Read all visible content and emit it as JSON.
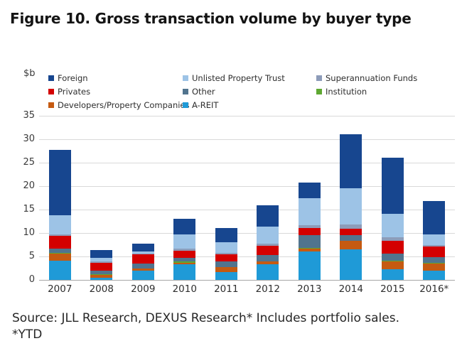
{
  "title": "Figure 10. Gross transaction volume by buyer type",
  "unit_label": "$b",
  "source": {
    "line1": "Source: JLL Research, DEXUS Research* Includes portfolio sales.",
    "line2": "*YTD"
  },
  "legend": {
    "position": "top",
    "columns": [
      [
        "Foreign",
        "Privates",
        "Developers/Property Companies"
      ],
      [
        "Unlisted Property Trust",
        "Other",
        "A-REIT"
      ],
      [
        "Superannuation Funds",
        "Institution"
      ]
    ]
  },
  "chart_data": {
    "type": "bar",
    "stacked": true,
    "grid": true,
    "ylabel": "$b",
    "ylim": [
      0,
      35
    ],
    "yticks": [
      0,
      5,
      10,
      15,
      20,
      25,
      30,
      35
    ],
    "categories": [
      "2007",
      "2008",
      "2009",
      "2010",
      "2011",
      "2012",
      "2013",
      "2014",
      "2015",
      "2016*"
    ],
    "series_order": "bottom-to-top",
    "series": [
      {
        "name": "A-REIT",
        "color": "#1f9ad7",
        "values": [
          4.1,
          0.5,
          2.0,
          3.3,
          1.7,
          3.4,
          6.0,
          6.5,
          2.2,
          2.0
        ]
      },
      {
        "name": "Developers/Property Companies",
        "color": "#c55a11",
        "values": [
          1.5,
          0.6,
          0.4,
          0.4,
          1.0,
          0.5,
          0.7,
          1.8,
          1.8,
          1.5
        ]
      },
      {
        "name": "Institution",
        "color": "#5ea832",
        "values": [
          0.1,
          0.1,
          0.1,
          0.2,
          0.1,
          0.1,
          0.1,
          0.1,
          0.1,
          0.1
        ]
      },
      {
        "name": "Other",
        "color": "#51748e",
        "values": [
          1.0,
          0.7,
          1.0,
          0.8,
          1.2,
          1.3,
          2.7,
          1.2,
          1.5,
          1.2
        ]
      },
      {
        "name": "Privates",
        "color": "#d40000",
        "values": [
          2.7,
          1.8,
          1.9,
          1.5,
          1.4,
          2.0,
          1.6,
          1.3,
          2.8,
          2.3
        ]
      },
      {
        "name": "Superannuation Funds",
        "color": "#8d9cb9",
        "values": [
          0.3,
          0.2,
          0.2,
          0.5,
          0.3,
          0.5,
          0.5,
          1.0,
          0.7,
          0.3
        ]
      },
      {
        "name": "Unlisted Property Trust",
        "color": "#9dc3e6",
        "values": [
          4.1,
          0.8,
          0.5,
          3.0,
          2.4,
          3.6,
          5.8,
          7.6,
          5.0,
          2.3
        ]
      },
      {
        "name": "Foreign",
        "color": "#17468f",
        "values": [
          14.0,
          1.6,
          1.7,
          3.4,
          3.0,
          4.5,
          3.3,
          11.5,
          12.0,
          7.1
        ]
      }
    ],
    "totals": [
      27.8,
      6.3,
      7.8,
      13.1,
      11.1,
      15.9,
      20.7,
      31.0,
      26.1,
      16.8
    ],
    "title": "Gross transaction volume by buyer type"
  }
}
